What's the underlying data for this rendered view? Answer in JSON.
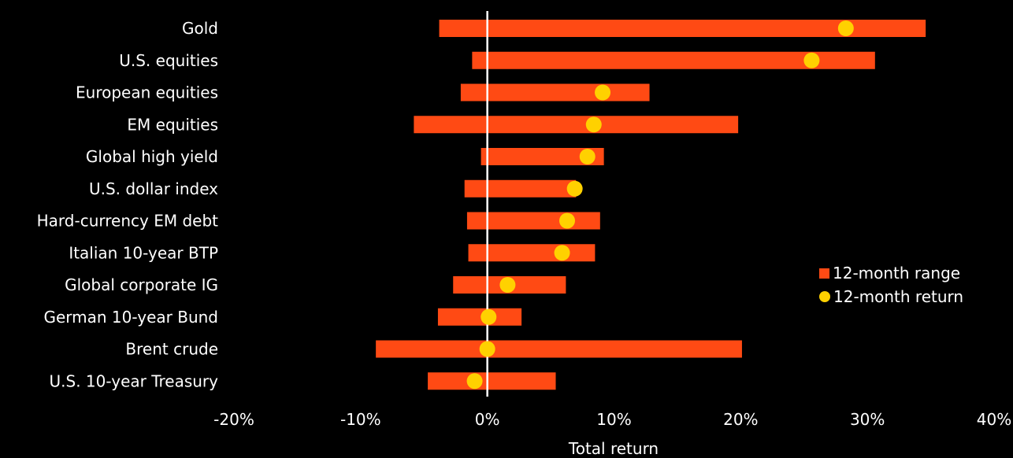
{
  "colors": {
    "range": "#ff4a14",
    "return": "#ffd100",
    "zero_line": "#ffffff",
    "background": "#000000"
  },
  "legend": {
    "range_label": "12-month range",
    "return_label": "12-month return"
  },
  "chart_data": {
    "type": "bar",
    "orientation": "horizontal",
    "title": "",
    "xlabel": "Total return",
    "ylabel": "",
    "xlim": [
      -20,
      40
    ],
    "x_ticks": [
      -20,
      -10,
      0,
      10,
      20,
      30,
      40
    ],
    "x_tick_labels": [
      "-20%",
      "-10%",
      "0%",
      "10%",
      "20%",
      "30%",
      "40%"
    ],
    "categories": [
      "Gold",
      "U.S. equities",
      "European equities",
      "EM equities",
      "Global high yield",
      "U.S. dollar index",
      "Hard-currency EM debt",
      "Italian 10-year BTP",
      "Global corporate IG",
      "German 10-year Bund",
      "Brent crude",
      "U.S. 10-year Treasury"
    ],
    "series": [
      {
        "name": "12-month range",
        "kind": "range_bar",
        "low": [
          -3.8,
          -1.2,
          -2.1,
          -5.8,
          -0.5,
          -1.8,
          -1.6,
          -1.5,
          -2.7,
          -3.9,
          -8.8,
          -4.7
        ],
        "high": [
          34.6,
          30.6,
          12.8,
          19.8,
          9.2,
          7.0,
          8.9,
          8.5,
          6.2,
          2.7,
          20.1,
          5.4
        ]
      },
      {
        "name": "12-month return",
        "kind": "point",
        "values": [
          28.3,
          25.6,
          9.1,
          8.4,
          7.9,
          6.9,
          6.3,
          5.9,
          1.6,
          0.1,
          0.0,
          -1.0
        ]
      }
    ],
    "legend_position": "right",
    "grid": false
  }
}
